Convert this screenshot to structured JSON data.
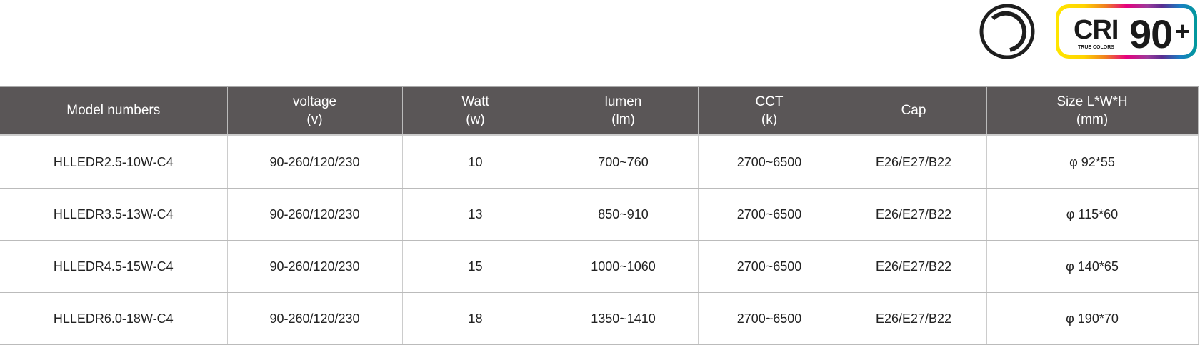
{
  "icons": [
    {
      "name": "dimmable-circle-icon"
    },
    {
      "name": "cri-badge",
      "label": "CRI",
      "value": "90",
      "suffix": "+",
      "sub": "TRUE COLORS"
    }
  ],
  "table": {
    "headers": [
      [
        "Model numbers",
        ""
      ],
      [
        "voltage",
        "(v)"
      ],
      [
        "Watt",
        "(w)"
      ],
      [
        "lumen",
        "(lm)"
      ],
      [
        "CCT",
        "(k)"
      ],
      [
        "Cap",
        ""
      ],
      [
        "Size L*W*H",
        "(mm)"
      ]
    ],
    "rows": [
      [
        "HLLEDR2.5-10W-C4",
        "90-260/120/230",
        "10",
        "700~760",
        "2700~6500",
        "E26/E27/B22",
        "φ 92*55"
      ],
      [
        "HLLEDR3.5-13W-C4",
        "90-260/120/230",
        "13",
        "850~910",
        "2700~6500",
        "E26/E27/B22",
        "φ 115*60"
      ],
      [
        "HLLEDR4.5-15W-C4",
        "90-260/120/230",
        "15",
        "1000~1060",
        "2700~6500",
        "E26/E27/B22",
        "φ 140*65"
      ],
      [
        "HLLEDR6.0-18W-C4",
        "90-260/120/230",
        "18",
        "1350~1410",
        "2700~6500",
        "E26/E27/B22",
        "φ 190*70"
      ]
    ]
  },
  "colors": {
    "header_bg": "#5a5657"
  }
}
